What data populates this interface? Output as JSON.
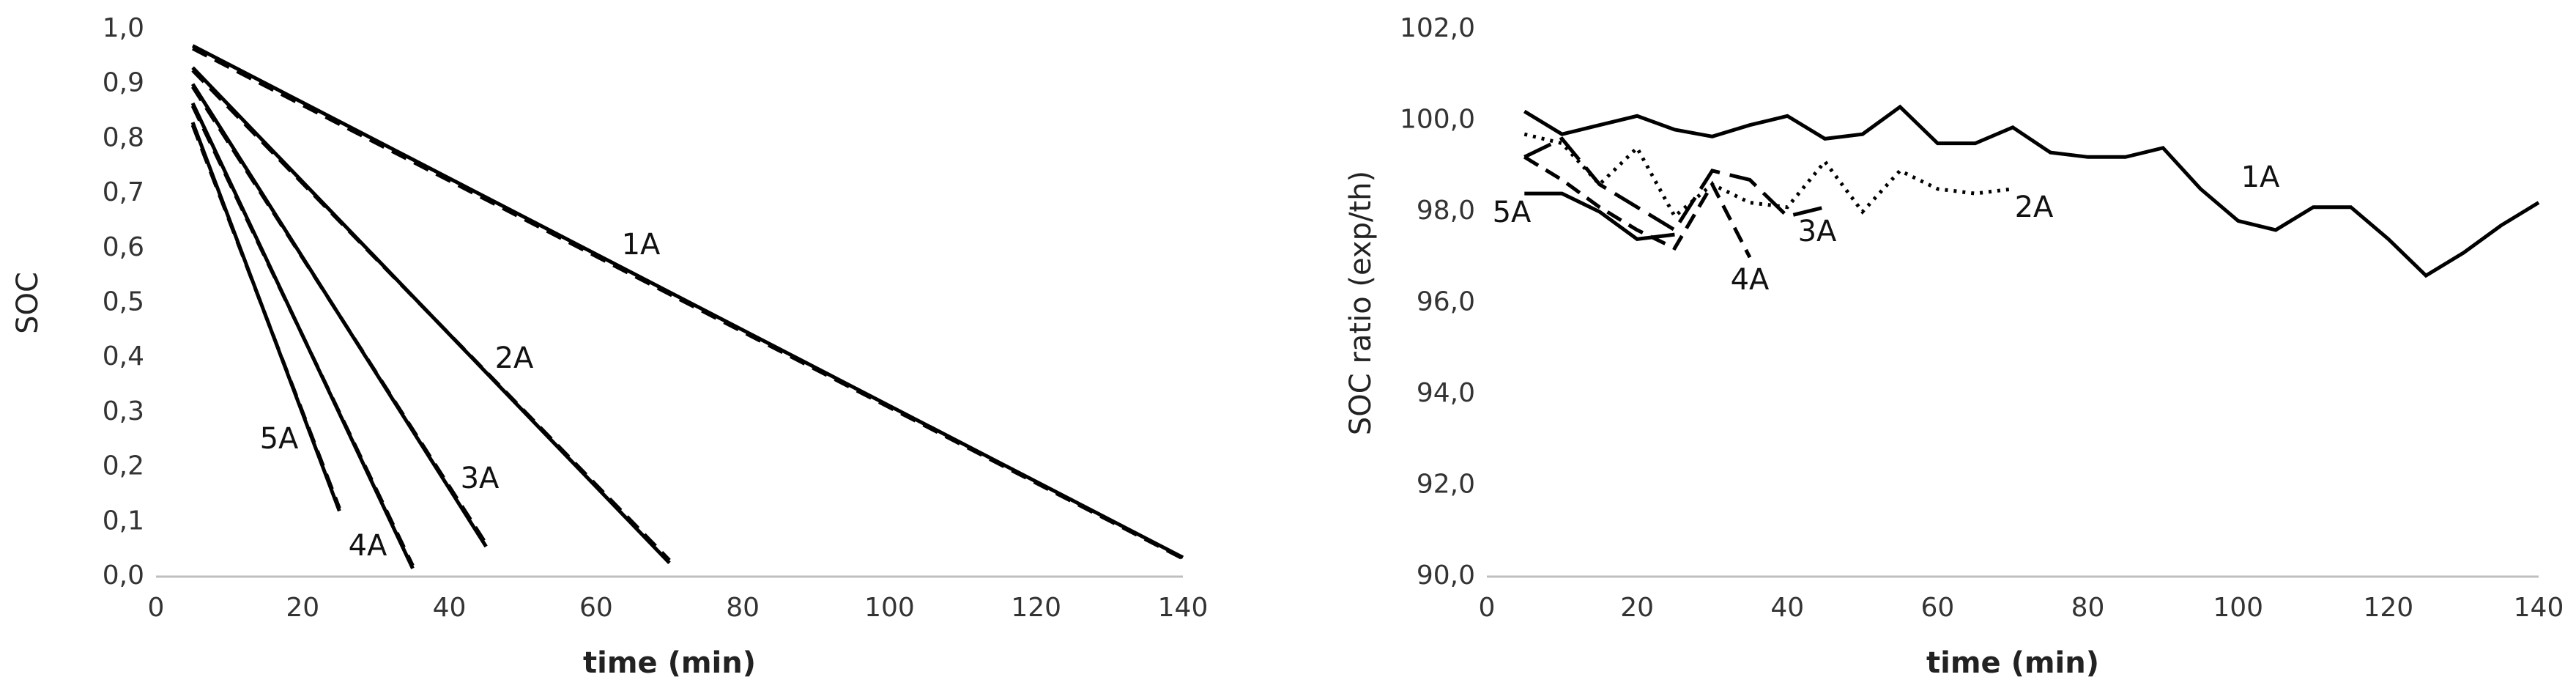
{
  "chart_data": [
    {
      "type": "line",
      "xlabel": "time (min)",
      "ylabel": "SOC",
      "xlim": [
        0,
        140
      ],
      "ylim": [
        0,
        1.0
      ],
      "xticks": [
        0,
        20,
        40,
        60,
        80,
        100,
        120,
        140
      ],
      "yticks": [
        {
          "value": 0,
          "label": "0,0"
        },
        {
          "value": 0.1,
          "label": "0,1"
        },
        {
          "value": 0.2,
          "label": "0,2"
        },
        {
          "value": 0.3,
          "label": "0,3"
        },
        {
          "value": 0.4,
          "label": "0,4"
        },
        {
          "value": 0.5,
          "label": "0,5"
        },
        {
          "value": 0.6,
          "label": "0,6"
        },
        {
          "value": 0.7,
          "label": "0,7"
        },
        {
          "value": 0.8,
          "label": "0,8"
        },
        {
          "value": 0.9,
          "label": "0,9"
        },
        {
          "value": 1.0,
          "label": "1,0"
        }
      ],
      "grid": false,
      "series": [
        {
          "name": "1A",
          "color": "#000000",
          "style": "solid",
          "x": [
            5,
            140
          ],
          "values": [
            0.97,
            0.035
          ]
        },
        {
          "color": "#000000",
          "style": "dashed",
          "x": [
            5,
            140
          ],
          "values": [
            0.965,
            0.033
          ]
        },
        {
          "name": "2A",
          "color": "#000000",
          "style": "solid",
          "x": [
            5,
            70
          ],
          "values": [
            0.93,
            0.025
          ]
        },
        {
          "color": "#000000",
          "style": "dashed",
          "x": [
            5,
            70
          ],
          "values": [
            0.925,
            0.03
          ]
        },
        {
          "name": "3A",
          "color": "#000000",
          "style": "solid",
          "x": [
            5,
            45
          ],
          "values": [
            0.9,
            0.055
          ]
        },
        {
          "color": "#000000",
          "style": "dashed",
          "x": [
            5,
            45
          ],
          "values": [
            0.895,
            0.06
          ]
        },
        {
          "name": "4A",
          "color": "#000000",
          "style": "solid",
          "x": [
            5,
            35
          ],
          "values": [
            0.865,
            0.015
          ]
        },
        {
          "color": "#000000",
          "style": "dashed",
          "x": [
            5,
            35
          ],
          "values": [
            0.86,
            0.02
          ]
        },
        {
          "name": "5A",
          "color": "#000000",
          "style": "solid",
          "x": [
            5,
            25
          ],
          "values": [
            0.83,
            0.12
          ]
        },
        {
          "color": "#000000",
          "style": "dashed",
          "x": [
            5,
            25
          ],
          "values": [
            0.825,
            0.125
          ]
        }
      ]
    },
    {
      "type": "line",
      "xlabel": "time (min)",
      "ylabel": "SOC ratio (exp/th)",
      "xlim": [
        0,
        140
      ],
      "ylim": [
        90,
        102
      ],
      "xticks": [
        0,
        20,
        40,
        60,
        80,
        100,
        120,
        140
      ],
      "yticks": [
        {
          "value": 90,
          "label": "90,0"
        },
        {
          "value": 92,
          "label": "92,0"
        },
        {
          "value": 94,
          "label": "94,0"
        },
        {
          "value": 96,
          "label": "96,0"
        },
        {
          "value": 98,
          "label": "98,0"
        },
        {
          "value": 100,
          "label": "100,0"
        },
        {
          "value": 102,
          "label": "102,0"
        }
      ],
      "grid": false,
      "series": [
        {
          "name": "1A",
          "color": "#000000",
          "style": "solid",
          "x": [
            5,
            10,
            15,
            20,
            25,
            30,
            35,
            40,
            45,
            50,
            55,
            60,
            65,
            70,
            75,
            80,
            85,
            90,
            95,
            100,
            105,
            110,
            115,
            120,
            125,
            130,
            135,
            140
          ],
          "values": [
            100.2,
            99.7,
            99.9,
            100.1,
            99.8,
            99.65,
            99.9,
            100.1,
            99.6,
            99.7,
            100.3,
            99.5,
            99.5,
            99.85,
            99.3,
            99.2,
            99.2,
            99.4,
            98.5,
            97.8,
            97.6,
            98.1,
            98.1,
            97.4,
            96.6,
            97.1,
            97.7,
            98.2
          ]
        },
        {
          "name": "2A",
          "color": "#000000",
          "style": "dotted",
          "x": [
            5,
            10,
            15,
            20,
            25,
            30,
            35,
            40,
            45,
            50,
            55,
            60,
            65,
            70
          ],
          "values": [
            99.7,
            99.5,
            98.6,
            99.4,
            97.9,
            98.6,
            98.2,
            98.1,
            99.1,
            98.0,
            98.9,
            98.5,
            98.4,
            98.5
          ]
        },
        {
          "name": "3A",
          "color": "#000000",
          "style": "longdash",
          "x": [
            5,
            10,
            15,
            20,
            25,
            30,
            35,
            40,
            45
          ],
          "values": [
            99.2,
            99.6,
            98.6,
            98.1,
            97.6,
            98.9,
            98.7,
            97.9,
            98.1
          ]
        },
        {
          "name": "4A",
          "color": "#000000",
          "style": "dashed",
          "x": [
            5,
            10,
            15,
            20,
            25,
            30,
            35
          ],
          "values": [
            99.2,
            98.7,
            98.1,
            97.6,
            97.2,
            98.6,
            97.0
          ]
        },
        {
          "name": "5A",
          "color": "#000000",
          "style": "solid",
          "x": [
            5,
            10,
            15,
            20,
            25
          ],
          "values": [
            98.4,
            98.4,
            98.0,
            97.4,
            97.5
          ]
        }
      ]
    }
  ]
}
